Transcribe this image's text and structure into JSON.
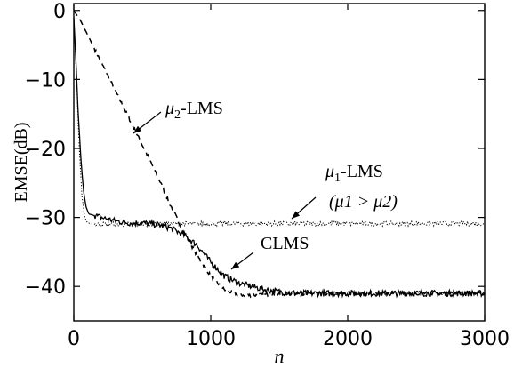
{
  "chart_data": {
    "type": "line",
    "title": "",
    "xlabel": "n",
    "ylabel": "EMSE(dB)",
    "xlim": [
      0,
      3000
    ],
    "ylim": [
      -45,
      1
    ],
    "grid": false,
    "xticks": [
      0,
      1000,
      2000,
      3000
    ],
    "yticks": [
      0,
      -10,
      -20,
      -30,
      -40
    ],
    "xtick_labels": [
      "0",
      "1000",
      "2000",
      "3000"
    ],
    "ytick_labels": [
      "0",
      "−10",
      "−20",
      "−30",
      "−40"
    ],
    "series": [
      {
        "name": "μ2-LMS",
        "style": "dashed",
        "x": [
          0,
          50,
          100,
          200,
          300,
          400,
          500,
          600,
          700,
          800,
          900,
          1000,
          1100,
          1200,
          1300,
          1400,
          1500,
          1700,
          2000,
          2300,
          2600,
          3000
        ],
        "y": [
          0,
          -1.5,
          -3.5,
          -7.5,
          -11.5,
          -15.5,
          -19.5,
          -23.5,
          -28,
          -32,
          -35.5,
          -38.5,
          -40.5,
          -41.2,
          -41.3,
          -41.2,
          -41.1,
          -41.1,
          -41,
          -41,
          -41,
          -41
        ]
      },
      {
        "name": "CLMS",
        "style": "solid",
        "x": [
          0,
          15,
          30,
          50,
          70,
          90,
          110,
          200,
          300,
          400,
          500,
          600,
          700,
          800,
          900,
          1000,
          1100,
          1200,
          1300,
          1400,
          1600,
          1800,
          2000,
          2300,
          2600,
          3000
        ],
        "y": [
          -1,
          -7,
          -14,
          -21,
          -26,
          -28.5,
          -29.5,
          -30,
          -30.5,
          -30.8,
          -30.8,
          -31,
          -31.5,
          -32.5,
          -34,
          -36.5,
          -38.5,
          -39.5,
          -40,
          -40.5,
          -41,
          -41,
          -41,
          -41,
          -41,
          -41
        ]
      },
      {
        "name": "μ1-LMS",
        "style": "dotted",
        "x": [
          0,
          20,
          40,
          60,
          80,
          100,
          150,
          500,
          1000,
          1500,
          2000,
          2500,
          3000
        ],
        "y": [
          -1,
          -10,
          -20,
          -27,
          -30,
          -30.8,
          -31,
          -31,
          -30.9,
          -30.9,
          -30.9,
          -30.9,
          -30.9
        ]
      }
    ],
    "annotations": [
      {
        "text_prefix": "μ",
        "text_sub": "2",
        "text_suffix": "-LMS",
        "target_series": "μ2-LMS"
      },
      {
        "text_prefix": "μ",
        "text_sub": "1",
        "text_suffix": "-LMS",
        "line2": "(μ1 > μ2)",
        "target_series": "μ1-LMS"
      },
      {
        "text": "CLMS",
        "target_series": "CLMS"
      }
    ]
  }
}
